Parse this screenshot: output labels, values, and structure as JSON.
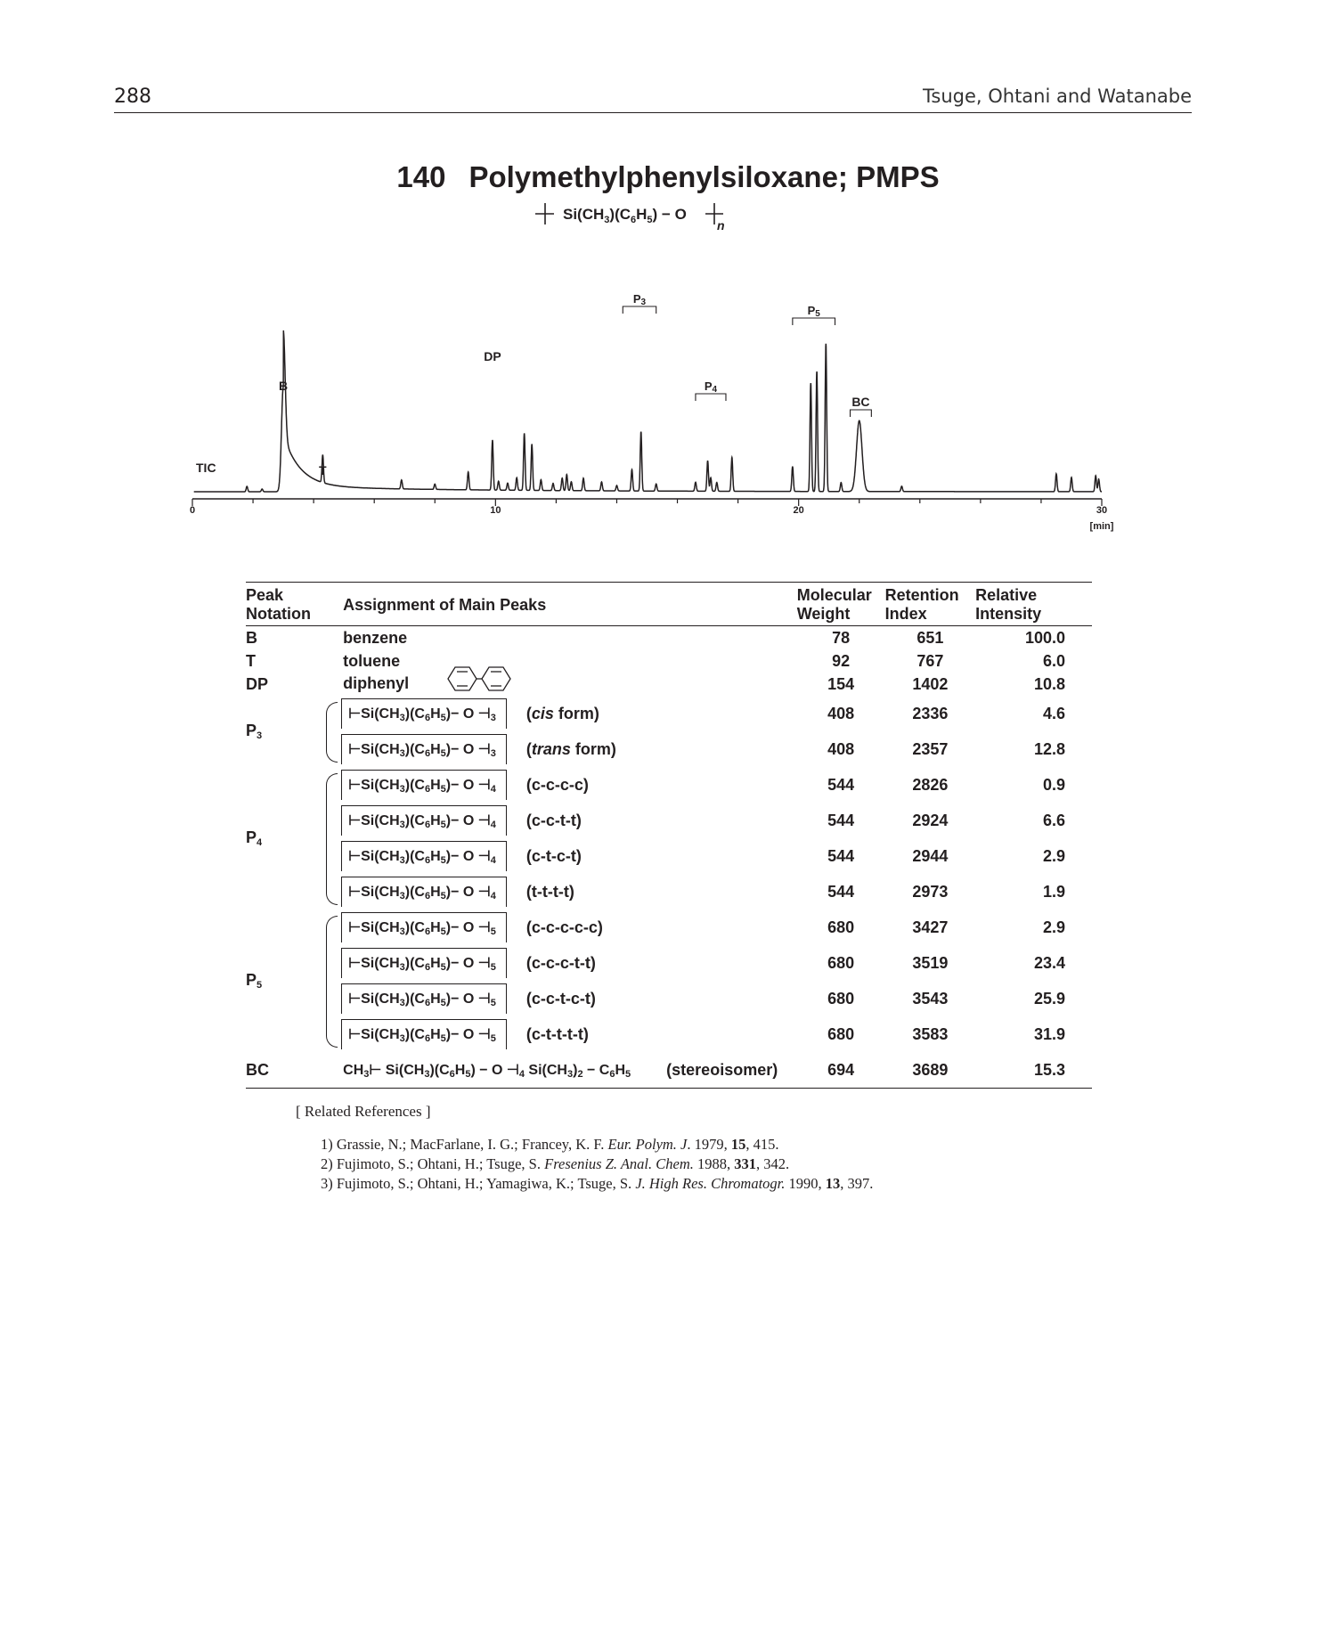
{
  "header": {
    "page_number": "288",
    "running_head": "Tsuge, Ohtani and Watanabe"
  },
  "compound": {
    "number": "140",
    "name": "Polymethylphenylsiloxane; PMPS",
    "repeat_unit": "Si(CH3)(C6H5) − O",
    "repeat_index": "n"
  },
  "chromatogram": {
    "signal_label": "TIC",
    "x_axis": {
      "ticks": [
        "0",
        "10",
        "20",
        "30"
      ],
      "unit": "[min]",
      "range": [
        0,
        30
      ]
    },
    "peak_labels": [
      {
        "text": "B",
        "time": 3.0
      },
      {
        "text": "T",
        "time": 4.3
      },
      {
        "text": "DP",
        "time": 9.9
      },
      {
        "text": "P3",
        "time": 14.8
      },
      {
        "text": "P4",
        "time": 17.1
      },
      {
        "text": "P5",
        "time": 20.4
      },
      {
        "text": "BC",
        "time": 22.0
      }
    ],
    "peaks": [
      {
        "t": 3.0,
        "h": 100.0
      },
      {
        "t": 4.3,
        "h": 6.0
      },
      {
        "t": 9.9,
        "h": 10.8
      },
      {
        "t": 14.5,
        "h": 4.6
      },
      {
        "t": 14.8,
        "h": 12.8
      },
      {
        "t": 17.0,
        "h": 6.6
      },
      {
        "t": 17.1,
        "h": 2.9
      },
      {
        "t": 17.3,
        "h": 1.9
      },
      {
        "t": 20.4,
        "h": 23.4
      },
      {
        "t": 20.6,
        "h": 25.9
      },
      {
        "t": 20.9,
        "h": 31.9
      },
      {
        "t": 22.0,
        "h": 15.3
      }
    ]
  },
  "table": {
    "headers": {
      "notation": [
        "Peak",
        "Notation"
      ],
      "assignment": "Assignment of Main Peaks",
      "mw": [
        "Molecular",
        "Weight"
      ],
      "ri": [
        "Retention",
        "Index"
      ],
      "rel": [
        "Relative",
        "Intensity"
      ]
    },
    "rows": [
      {
        "notation": "B",
        "assignment": "benzene",
        "mw": "78",
        "ri": "651",
        "rel": "100.0"
      },
      {
        "notation": "T",
        "assignment": "toluene",
        "mw": "92",
        "ri": "767",
        "rel": "6.0"
      },
      {
        "notation": "DP",
        "assignment": "diphenyl",
        "mw": "154",
        "ri": "1402",
        "rel": "10.8"
      }
    ],
    "oligomer_groups": [
      {
        "notation": "P3",
        "n": "3",
        "rows": [
          {
            "form": "cis",
            "suffix": " form",
            "mw": "408",
            "ri": "2336",
            "rel": "4.6"
          },
          {
            "form": "trans",
            "suffix": " form",
            "mw": "408",
            "ri": "2357",
            "rel": "12.8"
          }
        ]
      },
      {
        "notation": "P4",
        "n": "4",
        "rows": [
          {
            "conf": "(c-c-c-c)",
            "mw": "544",
            "ri": "2826",
            "rel": "0.9"
          },
          {
            "conf": "(c-c-t-t)",
            "mw": "544",
            "ri": "2924",
            "rel": "6.6"
          },
          {
            "conf": "(c-t-c-t)",
            "mw": "544",
            "ri": "2944",
            "rel": "2.9"
          },
          {
            "conf": "(t-t-t-t)",
            "mw": "544",
            "ri": "2973",
            "rel": "1.9"
          }
        ]
      },
      {
        "notation": "P5",
        "n": "5",
        "rows": [
          {
            "conf": "(c-c-c-c-c)",
            "mw": "680",
            "ri": "3427",
            "rel": "2.9"
          },
          {
            "conf": "(c-c-c-t-t)",
            "mw": "680",
            "ri": "3519",
            "rel": "23.4"
          },
          {
            "conf": "(c-c-t-c-t)",
            "mw": "680",
            "ri": "3543",
            "rel": "25.9"
          },
          {
            "conf": "(c-t-t-t-t)",
            "mw": "680",
            "ri": "3583",
            "rel": "31.9"
          }
        ]
      }
    ],
    "bc_row": {
      "notation": "BC",
      "formula": "CH3 ⊢ Si(CH3)(C6H5) − O ⊣4 Si(CH3)2 − C6H5",
      "note": "(stereoisomer)",
      "mw": "694",
      "ri": "3689",
      "rel": "15.3"
    }
  },
  "references": {
    "heading": "[ Related References ]",
    "items": [
      {
        "pre": "1) Grassie, N.; MacFarlane, I. G.; Francey, K. F. ",
        "journal": "Eur. Polym. J",
        "mid": ". 1979, ",
        "vol": "15",
        "post": ", 415."
      },
      {
        "pre": "2) Fujimoto, S.; Ohtani, H.; Tsuge, S. ",
        "journal": "Fresenius Z. Anal. Chem.",
        "mid": " 1988, ",
        "vol": "331",
        "post": ", 342."
      },
      {
        "pre": "3) Fujimoto, S.; Ohtani, H.; Yamagiwa, K.; Tsuge, S. ",
        "journal": "J. High Res. Chromatogr.",
        "mid": " 1990, ",
        "vol": "13",
        "post": ", 397."
      }
    ]
  }
}
